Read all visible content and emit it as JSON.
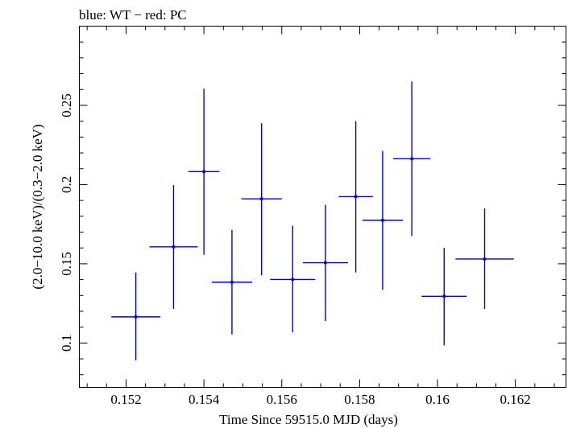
{
  "chart_data": {
    "type": "scatter",
    "title": "blue: WT − red: PC",
    "xlabel": "Time Since 59515.0 MJD (days)",
    "ylabel": "(2.0−10.0 keV)/(0.3−2.0 keV)",
    "xlim": [
      0.1508,
      0.1633
    ],
    "ylim": [
      0.072,
      0.3
    ],
    "xticks": [
      0.152,
      0.154,
      0.156,
      0.158,
      0.16,
      0.162
    ],
    "xtick_labels": [
      "0.152",
      "0.154",
      "0.156",
      "0.158",
      "0.16",
      "0.162"
    ],
    "yticks": [
      0.1,
      0.15,
      0.2,
      0.25
    ],
    "ytick_labels": [
      "0.1",
      "0.15",
      "0.2",
      "0.25"
    ],
    "grid": false,
    "series": [
      {
        "color": "#0000dd",
        "points": [
          {
            "x": 0.15225,
            "y": 0.1165,
            "xerr_lo": 0.00063,
            "xerr_hi": 0.00063,
            "y_lo": 0.089,
            "y_hi": 0.1445
          },
          {
            "x": 0.15322,
            "y": 0.1607,
            "xerr_lo": 0.00062,
            "xerr_hi": 0.00062,
            "y_lo": 0.1215,
            "y_hi": 0.1998
          },
          {
            "x": 0.154,
            "y": 0.2082,
            "xerr_lo": 0.0004,
            "xerr_hi": 0.0004,
            "y_lo": 0.1557,
            "y_hi": 0.2605
          },
          {
            "x": 0.15472,
            "y": 0.1384,
            "xerr_lo": 0.00052,
            "xerr_hi": 0.00052,
            "y_lo": 0.1054,
            "y_hi": 0.1714
          },
          {
            "x": 0.15548,
            "y": 0.191,
            "xerr_lo": 0.00052,
            "xerr_hi": 0.00052,
            "y_lo": 0.1428,
            "y_hi": 0.2387
          },
          {
            "x": 0.15628,
            "y": 0.1401,
            "xerr_lo": 0.00058,
            "xerr_hi": 0.00058,
            "y_lo": 0.1067,
            "y_hi": 0.174
          },
          {
            "x": 0.15712,
            "y": 0.1507,
            "xerr_lo": 0.00058,
            "xerr_hi": 0.00058,
            "y_lo": 0.1138,
            "y_hi": 0.1872
          },
          {
            "x": 0.1579,
            "y": 0.1924,
            "xerr_lo": 0.00044,
            "xerr_hi": 0.00044,
            "y_lo": 0.1445,
            "y_hi": 0.2401
          },
          {
            "x": 0.15859,
            "y": 0.1775,
            "xerr_lo": 0.00052,
            "xerr_hi": 0.00052,
            "y_lo": 0.1336,
            "y_hi": 0.2212
          },
          {
            "x": 0.15934,
            "y": 0.2163,
            "xerr_lo": 0.00048,
            "xerr_hi": 0.00048,
            "y_lo": 0.1675,
            "y_hi": 0.2651
          },
          {
            "x": 0.16017,
            "y": 0.1295,
            "xerr_lo": 0.00058,
            "xerr_hi": 0.00058,
            "y_lo": 0.0985,
            "y_hi": 0.1601
          },
          {
            "x": 0.16121,
            "y": 0.153,
            "xerr_lo": 0.00075,
            "xerr_hi": 0.00075,
            "y_lo": 0.1215,
            "y_hi": 0.1849
          }
        ]
      }
    ]
  }
}
